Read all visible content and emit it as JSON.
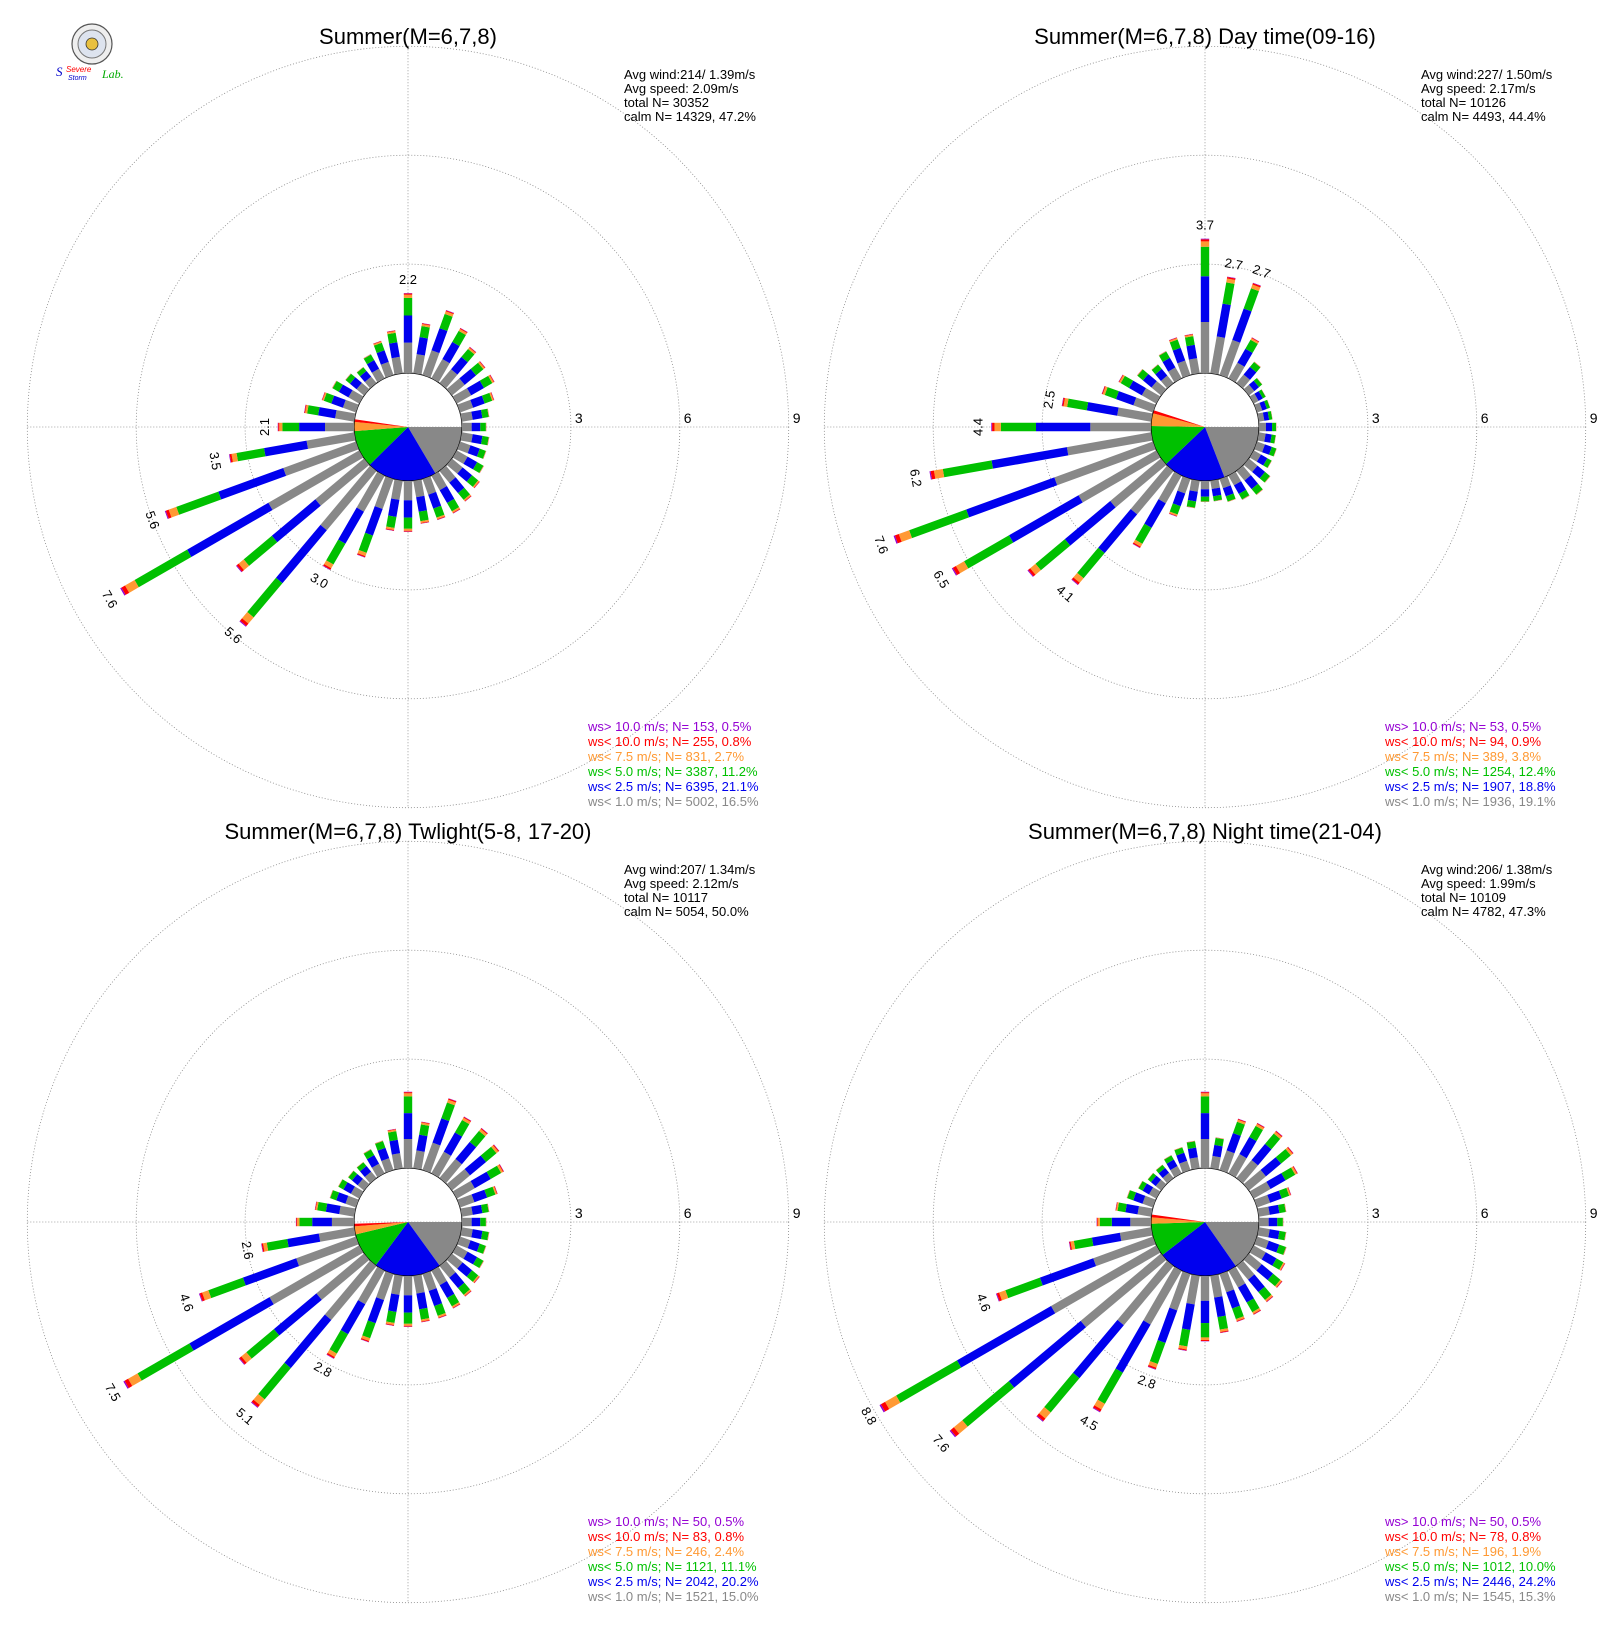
{
  "logo": {
    "text_top": "Severe",
    "text_mid": "Storm",
    "text_lab": "Lab."
  },
  "colors": {
    "gt10": "#9400d3",
    "lt10": "#ff0000",
    "lt7_5": "#ff9933",
    "lt5": "#00c000",
    "lt2_5": "#0000ee",
    "lt1": "#888888",
    "text": "#000000",
    "calm_pie": [
      "#888888",
      "#0000ee",
      "#00c000",
      "#ff9933",
      "#ff0000"
    ]
  },
  "chart_data": [
    {
      "type": "polar-bar",
      "title": "Summer(M=6,7,8)",
      "ring_labels": [
        "3",
        "6",
        "9"
      ],
      "rmax": 9,
      "grid": true,
      "stats": [
        "Avg wind:214/ 1.39m/s",
        "Avg speed: 2.09m/s",
        "total N=       30352",
        "calm N=  14329,  47.2%"
      ],
      "legend": [
        {
          "text": "ws> 10.0 m/s; N=    153,  0.5%",
          "color": "#9400d3"
        },
        {
          "text": "ws< 10.0 m/s; N=    255,  0.8%",
          "color": "#ff0000"
        },
        {
          "text": "ws<  7.5 m/s; N=    831,  2.7%",
          "color": "#ff9933"
        },
        {
          "text": "ws<  5.0 m/s; N=  3387, 11.2%",
          "color": "#00c000"
        },
        {
          "text": "ws<  2.5 m/s; N=  6395, 21.1%",
          "color": "#0000ee"
        },
        {
          "text": "ws<  1.0 m/s; N=  5002, 16.5%",
          "color": "#888888"
        }
      ],
      "calm_pie": [
        16.5,
        21.1,
        11.2,
        2.7,
        0.8
      ],
      "bins": [
        {
          "dir": 0,
          "total": 2.2,
          "label": "2.2"
        },
        {
          "dir": 10,
          "total": 1.4
        },
        {
          "dir": 20,
          "total": 1.9
        },
        {
          "dir": 30,
          "total": 1.6
        },
        {
          "dir": 40,
          "total": 1.3
        },
        {
          "dir": 50,
          "total": 1.2
        },
        {
          "dir": 60,
          "total": 1.2
        },
        {
          "dir": 70,
          "total": 1.0
        },
        {
          "dir": 80,
          "total": 0.8
        },
        {
          "dir": 90,
          "total": 0.7
        },
        {
          "dir": 100,
          "total": 0.8
        },
        {
          "dir": 110,
          "total": 0.8
        },
        {
          "dir": 120,
          "total": 0.9
        },
        {
          "dir": 130,
          "total": 1.0
        },
        {
          "dir": 140,
          "total": 1.1
        },
        {
          "dir": 150,
          "total": 1.2
        },
        {
          "dir": 160,
          "total": 1.2
        },
        {
          "dir": 170,
          "total": 1.2
        },
        {
          "dir": 180,
          "total": 1.4
        },
        {
          "dir": 190,
          "total": 1.4
        },
        {
          "dir": 200,
          "total": 2.3
        },
        {
          "dir": 210,
          "total": 3.0,
          "label": "3.0"
        },
        {
          "dir": 220,
          "total": 5.6,
          "label": "5.6"
        },
        {
          "dir": 230,
          "total": 4.6
        },
        {
          "dir": 240,
          "total": 7.6,
          "label": "7.6"
        },
        {
          "dir": 250,
          "total": 5.6,
          "label": "5.6"
        },
        {
          "dir": 260,
          "total": 3.5,
          "label": "3.5"
        },
        {
          "dir": 270,
          "total": 2.1,
          "label": "2.1"
        },
        {
          "dir": 280,
          "total": 1.4
        },
        {
          "dir": 290,
          "total": 1.0
        },
        {
          "dir": 300,
          "total": 0.9
        },
        {
          "dir": 310,
          "total": 0.7
        },
        {
          "dir": 320,
          "total": 0.6
        },
        {
          "dir": 330,
          "total": 0.8
        },
        {
          "dir": 340,
          "total": 1.0
        },
        {
          "dir": 350,
          "total": 1.2
        }
      ]
    },
    {
      "type": "polar-bar",
      "title": "Summer(M=6,7,8) Day time(09-16)",
      "ring_labels": [
        "3",
        "6",
        "9"
      ],
      "rmax": 9,
      "grid": true,
      "stats": [
        "Avg wind:227/ 1.50m/s",
        "Avg speed: 2.17m/s",
        "total N=       10126",
        "calm N=   4493,  44.4%"
      ],
      "legend": [
        {
          "text": "ws> 10.0 m/s; N=     53,  0.5%",
          "color": "#9400d3"
        },
        {
          "text": "ws< 10.0 m/s; N=     94,  0.9%",
          "color": "#ff0000"
        },
        {
          "text": "ws<  7.5 m/s; N=    389,  3.8%",
          "color": "#ff9933"
        },
        {
          "text": "ws<  5.0 m/s; N=  1254, 12.4%",
          "color": "#00c000"
        },
        {
          "text": "ws<  2.5 m/s; N=  1907, 18.8%",
          "color": "#0000ee"
        },
        {
          "text": "ws<  1.0 m/s; N=  1936, 19.1%",
          "color": "#888888"
        }
      ],
      "calm_pie": [
        19.1,
        18.8,
        12.4,
        3.8,
        0.9
      ],
      "bins": [
        {
          "dir": 0,
          "total": 3.7,
          "label": "3.7"
        },
        {
          "dir": 10,
          "total": 2.7,
          "label": "2.7"
        },
        {
          "dir": 20,
          "total": 2.7,
          "label": "2.7"
        },
        {
          "dir": 30,
          "total": 1.3
        },
        {
          "dir": 40,
          "total": 0.8
        },
        {
          "dir": 50,
          "total": 0.5
        },
        {
          "dir": 60,
          "total": 0.4
        },
        {
          "dir": 70,
          "total": 0.4
        },
        {
          "dir": 80,
          "total": 0.4
        },
        {
          "dir": 90,
          "total": 0.5
        },
        {
          "dir": 100,
          "total": 0.5
        },
        {
          "dir": 110,
          "total": 0.6
        },
        {
          "dir": 120,
          "total": 0.6
        },
        {
          "dir": 130,
          "total": 0.8
        },
        {
          "dir": 140,
          "total": 0.9
        },
        {
          "dir": 150,
          "total": 0.8
        },
        {
          "dir": 160,
          "total": 0.7
        },
        {
          "dir": 170,
          "total": 0.6
        },
        {
          "dir": 180,
          "total": 0.6
        },
        {
          "dir": 190,
          "total": 0.8
        },
        {
          "dir": 200,
          "total": 1.1
        },
        {
          "dir": 210,
          "total": 2.3
        },
        {
          "dir": 220,
          "total": 4.1,
          "label": "4.1"
        },
        {
          "dir": 230,
          "total": 4.8
        },
        {
          "dir": 240,
          "total": 6.5,
          "label": "6.5"
        },
        {
          "dir": 250,
          "total": 7.6,
          "label": "7.6"
        },
        {
          "dir": 260,
          "total": 6.2,
          "label": "6.2"
        },
        {
          "dir": 270,
          "total": 4.4,
          "label": "4.4"
        },
        {
          "dir": 280,
          "total": 2.5,
          "label": "2.5"
        },
        {
          "dir": 290,
          "total": 1.5
        },
        {
          "dir": 300,
          "total": 1.2
        },
        {
          "dir": 310,
          "total": 0.9
        },
        {
          "dir": 320,
          "total": 0.7
        },
        {
          "dir": 330,
          "total": 0.9
        },
        {
          "dir": 340,
          "total": 1.1
        },
        {
          "dir": 350,
          "total": 1.1
        }
      ]
    },
    {
      "type": "polar-bar",
      "title": "Summer(M=6,7,8) Twlight(5-8, 17-20)",
      "ring_labels": [
        "3",
        "6",
        "9"
      ],
      "rmax": 9,
      "grid": true,
      "stats": [
        "Avg wind:207/ 1.34m/s",
        "Avg speed: 2.12m/s",
        "total N=       10117",
        "calm N=   5054,  50.0%"
      ],
      "legend": [
        {
          "text": "ws> 10.0 m/s; N=     50,  0.5%",
          "color": "#9400d3"
        },
        {
          "text": "ws< 10.0 m/s; N=     83,  0.8%",
          "color": "#ff0000"
        },
        {
          "text": "ws<  7.5 m/s; N=    246,  2.4%",
          "color": "#ff9933"
        },
        {
          "text": "ws<  5.0 m/s; N=  1121, 11.1%",
          "color": "#00c000"
        },
        {
          "text": "ws<  2.5 m/s; N=  2042, 20.2%",
          "color": "#0000ee"
        },
        {
          "text": "ws<  1.0 m/s; N=  1521, 15.0%",
          "color": "#888888"
        }
      ],
      "calm_pie": [
        15.0,
        20.2,
        11.1,
        2.4,
        0.8
      ],
      "bins": [
        {
          "dir": 0,
          "total": 2.1
        },
        {
          "dir": 10,
          "total": 1.3
        },
        {
          "dir": 20,
          "total": 2.1
        },
        {
          "dir": 30,
          "total": 1.8
        },
        {
          "dir": 40,
          "total": 1.8
        },
        {
          "dir": 50,
          "total": 1.7
        },
        {
          "dir": 60,
          "total": 1.5
        },
        {
          "dir": 70,
          "total": 1.1
        },
        {
          "dir": 80,
          "total": 0.8
        },
        {
          "dir": 90,
          "total": 0.7
        },
        {
          "dir": 100,
          "total": 0.8
        },
        {
          "dir": 110,
          "total": 0.8
        },
        {
          "dir": 120,
          "total": 0.9
        },
        {
          "dir": 130,
          "total": 1.0
        },
        {
          "dir": 140,
          "total": 1.1
        },
        {
          "dir": 150,
          "total": 1.2
        },
        {
          "dir": 160,
          "total": 1.3
        },
        {
          "dir": 170,
          "total": 1.3
        },
        {
          "dir": 180,
          "total": 1.4
        },
        {
          "dir": 190,
          "total": 1.4
        },
        {
          "dir": 200,
          "total": 2.0
        },
        {
          "dir": 210,
          "total": 2.8,
          "label": "2.8"
        },
        {
          "dir": 220,
          "total": 5.1,
          "label": "5.1"
        },
        {
          "dir": 230,
          "total": 4.5
        },
        {
          "dir": 240,
          "total": 7.5,
          "label": "7.5"
        },
        {
          "dir": 250,
          "total": 4.6,
          "label": "4.6"
        },
        {
          "dir": 260,
          "total": 2.6,
          "label": "2.6"
        },
        {
          "dir": 270,
          "total": 1.6
        },
        {
          "dir": 280,
          "total": 1.1
        },
        {
          "dir": 290,
          "total": 0.8
        },
        {
          "dir": 300,
          "total": 0.7
        },
        {
          "dir": 310,
          "total": 0.6
        },
        {
          "dir": 320,
          "total": 0.6
        },
        {
          "dir": 330,
          "total": 0.8
        },
        {
          "dir": 340,
          "total": 0.9
        },
        {
          "dir": 350,
          "total": 1.1
        }
      ]
    },
    {
      "type": "polar-bar",
      "title": "Summer(M=6,7,8) Night time(21-04)",
      "ring_labels": [
        "3",
        "6",
        "9"
      ],
      "rmax": 9,
      "grid": true,
      "stats": [
        "Avg wind:206/ 1.38m/s",
        "Avg speed: 1.99m/s",
        "total N=       10109",
        "calm N=   4782,  47.3%"
      ],
      "legend": [
        {
          "text": "ws> 10.0 m/s; N=     50,  0.5%",
          "color": "#9400d3"
        },
        {
          "text": "ws< 10.0 m/s; N=     78,  0.8%",
          "color": "#ff0000"
        },
        {
          "text": "ws<  7.5 m/s; N=    196,  1.9%",
          "color": "#ff9933"
        },
        {
          "text": "ws<  5.0 m/s; N=  1012, 10.0%",
          "color": "#00c000"
        },
        {
          "text": "ws<  2.5 m/s; N=  2446, 24.2%",
          "color": "#0000ee"
        },
        {
          "text": "ws<  1.0 m/s; N=  1545, 15.3%",
          "color": "#888888"
        }
      ],
      "calm_pie": [
        15.3,
        24.2,
        10.0,
        1.9,
        0.8
      ],
      "bins": [
        {
          "dir": 0,
          "total": 2.1
        },
        {
          "dir": 10,
          "total": 0.9
        },
        {
          "dir": 20,
          "total": 1.5
        },
        {
          "dir": 30,
          "total": 1.6
        },
        {
          "dir": 40,
          "total": 1.7
        },
        {
          "dir": 50,
          "total": 1.6
        },
        {
          "dir": 60,
          "total": 1.4
        },
        {
          "dir": 70,
          "total": 1.0
        },
        {
          "dir": 80,
          "total": 0.8
        },
        {
          "dir": 90,
          "total": 0.7
        },
        {
          "dir": 100,
          "total": 0.8
        },
        {
          "dir": 110,
          "total": 0.9
        },
        {
          "dir": 120,
          "total": 1.0
        },
        {
          "dir": 130,
          "total": 1.2
        },
        {
          "dir": 140,
          "total": 1.3
        },
        {
          "dir": 150,
          "total": 1.4
        },
        {
          "dir": 160,
          "total": 1.4
        },
        {
          "dir": 170,
          "total": 1.6
        },
        {
          "dir": 180,
          "total": 1.8
        },
        {
          "dir": 190,
          "total": 2.1
        },
        {
          "dir": 200,
          "total": 2.8,
          "label": "2.8"
        },
        {
          "dir": 210,
          "total": 4.5,
          "label": "4.5"
        },
        {
          "dir": 220,
          "total": 5.6
        },
        {
          "dir": 230,
          "total": 7.6,
          "label": "7.6"
        },
        {
          "dir": 240,
          "total": 8.8,
          "label": "8.8"
        },
        {
          "dir": 250,
          "total": 4.6,
          "label": "4.6"
        },
        {
          "dir": 260,
          "total": 2.3
        },
        {
          "dir": 270,
          "total": 1.5
        },
        {
          "dir": 280,
          "total": 1.0
        },
        {
          "dir": 290,
          "total": 0.8
        },
        {
          "dir": 300,
          "total": 0.6
        },
        {
          "dir": 310,
          "total": 0.5
        },
        {
          "dir": 320,
          "total": 0.5
        },
        {
          "dir": 330,
          "total": 0.6
        },
        {
          "dir": 340,
          "total": 0.7
        },
        {
          "dir": 350,
          "total": 0.8
        }
      ]
    }
  ]
}
